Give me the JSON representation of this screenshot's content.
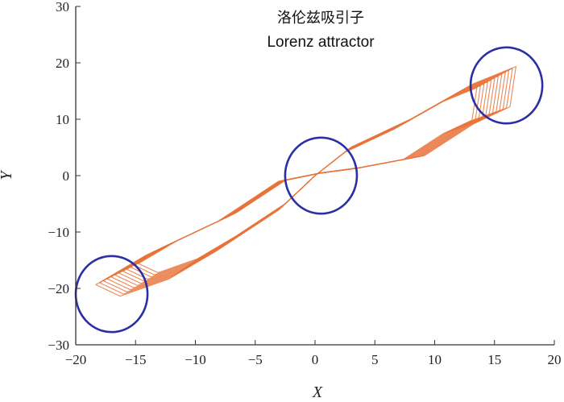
{
  "chart_data": {
    "type": "line",
    "title": "洛伦兹吸引子",
    "subtitle": "Lorenz attractor",
    "xlabel": "X",
    "ylabel": "Y",
    "xlim": [
      -20,
      20
    ],
    "ylim": [
      -30,
      30
    ],
    "x_ticks": [
      "−20",
      "−15",
      "−10",
      "−5",
      "0",
      "5",
      "10",
      "15",
      "20"
    ],
    "y_ticks": [
      "30",
      "20",
      "10",
      "0",
      "−10",
      "−20",
      "−30"
    ],
    "grid": false,
    "legend": "none",
    "colors": {
      "trajectory": "#e8733a",
      "circle": "#2b2fa6",
      "axis": "#333333"
    },
    "series": [
      {
        "x": [
          0,
          3,
          8,
          13,
          16.5,
          16,
          13,
          9,
          4,
          0.5,
          -3,
          -8,
          -14,
          -18,
          -16,
          -12,
          -8,
          -3,
          0
        ],
        "y": [
          0,
          5,
          10,
          16,
          19,
          12,
          9,
          3.5,
          1.5,
          0.5,
          -1,
          -8,
          -14,
          -19,
          -21,
          -18,
          -13,
          -6,
          0
        ]
      }
    ],
    "highlight_circles": [
      {
        "cx": 0.5,
        "cy": 0,
        "r": 3
      },
      {
        "cx": 16,
        "cy": 16,
        "r": 3
      },
      {
        "cx": -17,
        "cy": -21,
        "r": 3
      }
    ]
  }
}
